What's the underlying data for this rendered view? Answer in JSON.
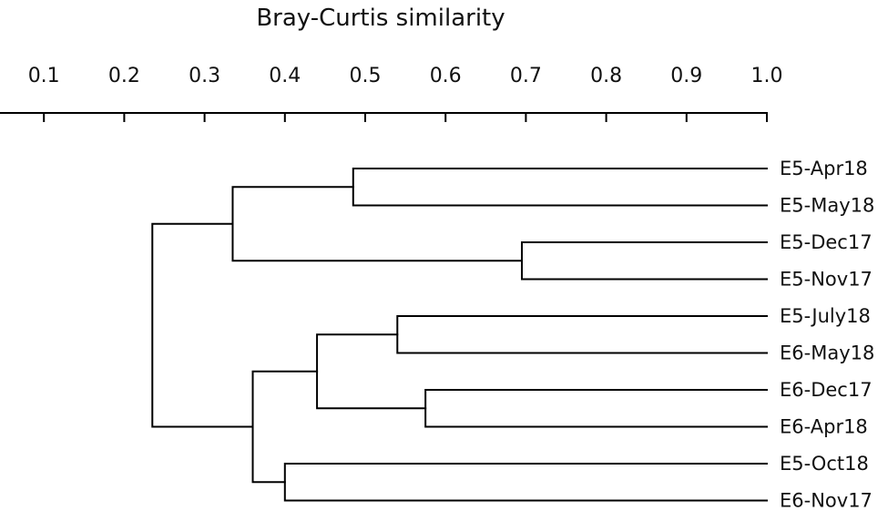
{
  "chart_data": {
    "type": "dendrogram",
    "xlabel": "Bray-Curtis similarity",
    "xlim": [
      0.0,
      1.0
    ],
    "ticks": [
      0.1,
      0.2,
      0.3,
      0.4,
      0.5,
      0.6,
      0.7,
      0.8,
      0.9,
      1.0
    ],
    "tick_labels": [
      "0.1",
      "0.2",
      "0.3",
      "0.4",
      "0.5",
      "0.6",
      "0.7",
      "0.8",
      "0.9",
      "1.0"
    ],
    "leaves": [
      "E5-Apr18",
      "E5-May18",
      "E5-Dec17",
      "E5-Nov17",
      "E5-July18",
      "E6-May18",
      "E6-Dec17",
      "E6-Apr18",
      "E5-Oct18",
      "E6-Nov17"
    ],
    "merges": [
      {
        "id": "c1",
        "children": [
          "E5-Apr18",
          "E5-May18"
        ],
        "similarity": 0.485
      },
      {
        "id": "c2",
        "children": [
          "E5-Dec17",
          "E5-Nov17"
        ],
        "similarity": 0.695
      },
      {
        "id": "c3",
        "children": [
          "c1",
          "c2"
        ],
        "similarity": 0.335
      },
      {
        "id": "c4",
        "children": [
          "E5-July18",
          "E6-May18"
        ],
        "similarity": 0.54
      },
      {
        "id": "c5",
        "children": [
          "E6-Dec17",
          "E6-Apr18"
        ],
        "similarity": 0.575
      },
      {
        "id": "c6",
        "children": [
          "c4",
          "c5"
        ],
        "similarity": 0.44
      },
      {
        "id": "c7",
        "children": [
          "E5-Oct18",
          "E6-Nov17"
        ],
        "similarity": 0.4
      },
      {
        "id": "c8",
        "children": [
          "c6",
          "c7"
        ],
        "similarity": 0.36
      },
      {
        "id": "c9",
        "children": [
          "c3",
          "c8"
        ],
        "similarity": 0.235
      }
    ]
  }
}
